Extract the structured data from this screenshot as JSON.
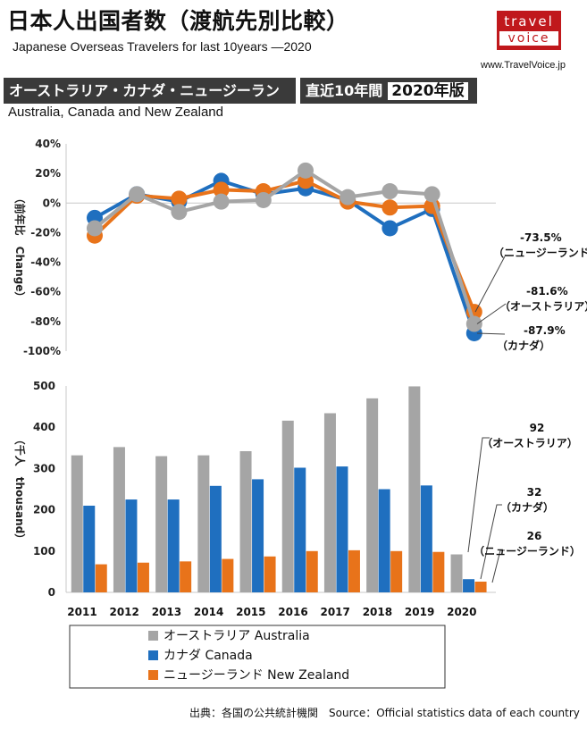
{
  "header": {
    "title": "日本人出国者数（渡航先別比較）",
    "subtitle": "Japanese Overseas Travelers for last 10years ―2020",
    "logo_line1": "travel",
    "logo_line2": "voice",
    "url": "www.TravelVoice.jp",
    "tag_region": "オーストラリア・カナダ・ニュージーランド",
    "tag_decade": "直近10年間",
    "tag_year": "2020年版",
    "region_en": "Australia, Canada and New Zealand"
  },
  "colors": {
    "australia": "#a5a5a5",
    "canada": "#1f6fbf",
    "new_zealand": "#e8731a"
  },
  "source": "出典：各国の公共統計機関　Source：Official statistics data of each country",
  "chart_data": [
    {
      "type": "line",
      "ylabel": "（前年比　Change）",
      "ylim": [
        -100,
        40
      ],
      "yticks": [
        "40%",
        "20%",
        "0%",
        "-20%",
        "-40%",
        "-60%",
        "-80%",
        "-100%"
      ],
      "x": [
        "2011",
        "2012",
        "2013",
        "2014",
        "2015",
        "2016",
        "2017",
        "2018",
        "2019",
        "2020"
      ],
      "grid": false,
      "series": [
        {
          "name": "カナダ Canada",
          "key": "canada",
          "values": [
            -10,
            6,
            1,
            15,
            6,
            10,
            2,
            -17,
            -4,
            -87.9
          ]
        },
        {
          "name": "ニュージーランド New Zealand",
          "key": "new_zealand",
          "values": [
            -22,
            5,
            3,
            9,
            8,
            15,
            1,
            -3,
            -2,
            -73.5
          ]
        },
        {
          "name": "オーストラリア Australia",
          "key": "australia",
          "values": [
            -17,
            6,
            -6,
            1,
            2,
            22,
            4,
            8,
            6,
            -81.6
          ]
        }
      ],
      "annotations": [
        {
          "value": "-73.5%",
          "label": "（ニュージーランド）"
        },
        {
          "value": "-81.6%",
          "label": "（オーストラリア）"
        },
        {
          "value": "-87.9%",
          "label": "（カナダ）"
        }
      ]
    },
    {
      "type": "bar",
      "ylabel": "（千人　thousand）",
      "ylim": [
        0,
        500
      ],
      "yticks": [
        "500",
        "400",
        "300",
        "200",
        "100",
        "0"
      ],
      "categories": [
        "2011",
        "2012",
        "2013",
        "2014",
        "2015",
        "2016",
        "2017",
        "2018",
        "2019",
        "2020"
      ],
      "grid": false,
      "legend_position": "bottom",
      "series": [
        {
          "name": "オーストラリア Australia",
          "key": "australia",
          "values": [
            332,
            352,
            330,
            332,
            342,
            416,
            434,
            470,
            499,
            92
          ]
        },
        {
          "name": "カナダ Canada",
          "key": "canada",
          "values": [
            210,
            225,
            225,
            258,
            274,
            302,
            305,
            250,
            259,
            32
          ]
        },
        {
          "name": "ニュージーランド New Zealand",
          "key": "new_zealand",
          "values": [
            68,
            72,
            75,
            81,
            87,
            100,
            102,
            100,
            98,
            26
          ]
        }
      ],
      "annotations": [
        {
          "value": "92",
          "label": "（オーストラリア）"
        },
        {
          "value": "32",
          "label": "（カナダ）"
        },
        {
          "value": "26",
          "label": "（ニュージーランド）"
        }
      ]
    }
  ]
}
